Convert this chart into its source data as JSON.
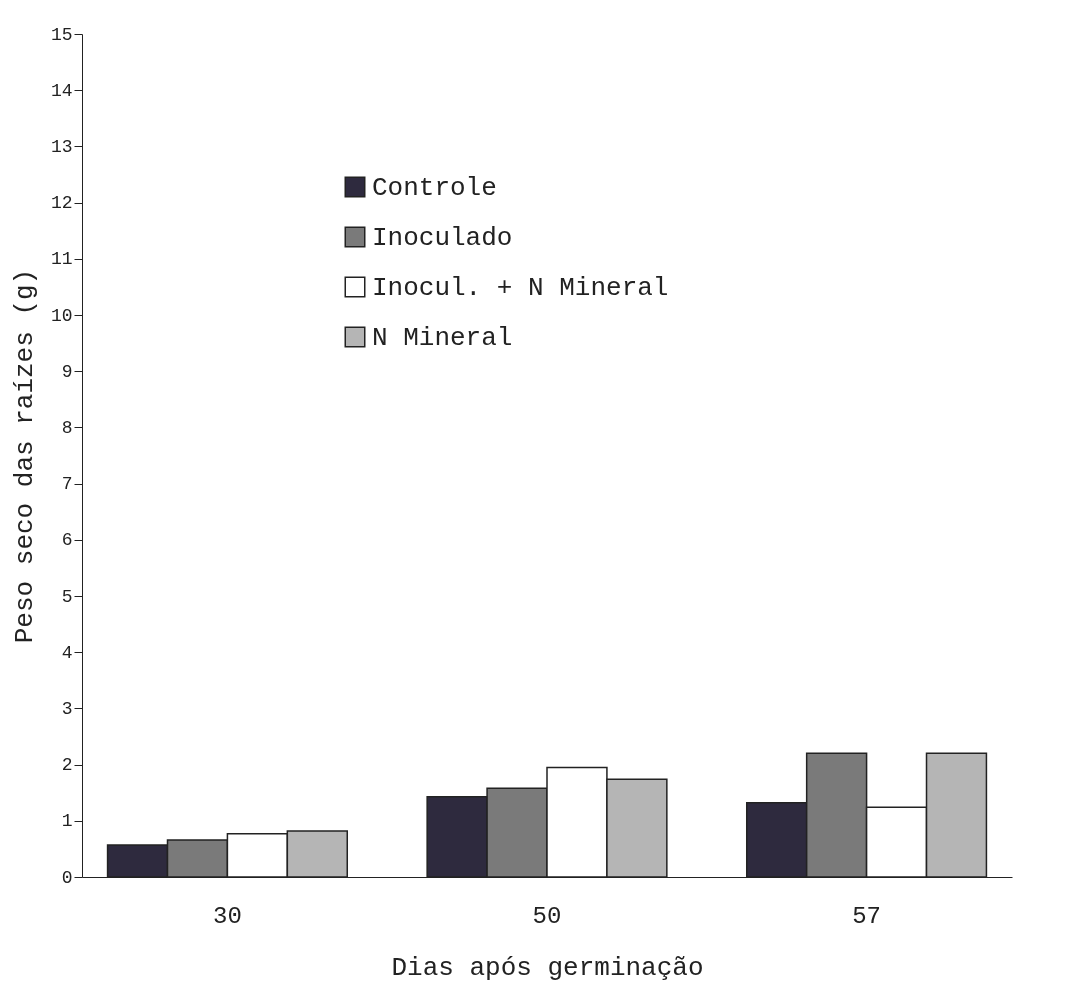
{
  "chart_data": {
    "type": "bar",
    "xlabel": "Dias após germinação",
    "ylabel": "Peso seco das raízes (g)",
    "categories": [
      "30",
      "50",
      "57"
    ],
    "series": [
      {
        "name": "Controle",
        "color": "#2e2a3e",
        "values": [
          0.57,
          1.43,
          1.32
        ]
      },
      {
        "name": "Inoculado",
        "color": "#7a7a7a",
        "values": [
          0.66,
          1.58,
          2.2
        ]
      },
      {
        "name": "Inocul. + N Mineral",
        "color": "#ffffff",
        "values": [
          0.77,
          1.95,
          1.24
        ]
      },
      {
        "name": "N Mineral",
        "color": "#b5b5b5",
        "values": [
          0.82,
          1.74,
          2.2
        ]
      }
    ],
    "ylim": [
      0,
      15
    ],
    "yticks": [
      0,
      1,
      2,
      3,
      4,
      5,
      6,
      7,
      8,
      9,
      10,
      11,
      12,
      13,
      14,
      15
    ],
    "grid": false,
    "legend": "top left"
  }
}
